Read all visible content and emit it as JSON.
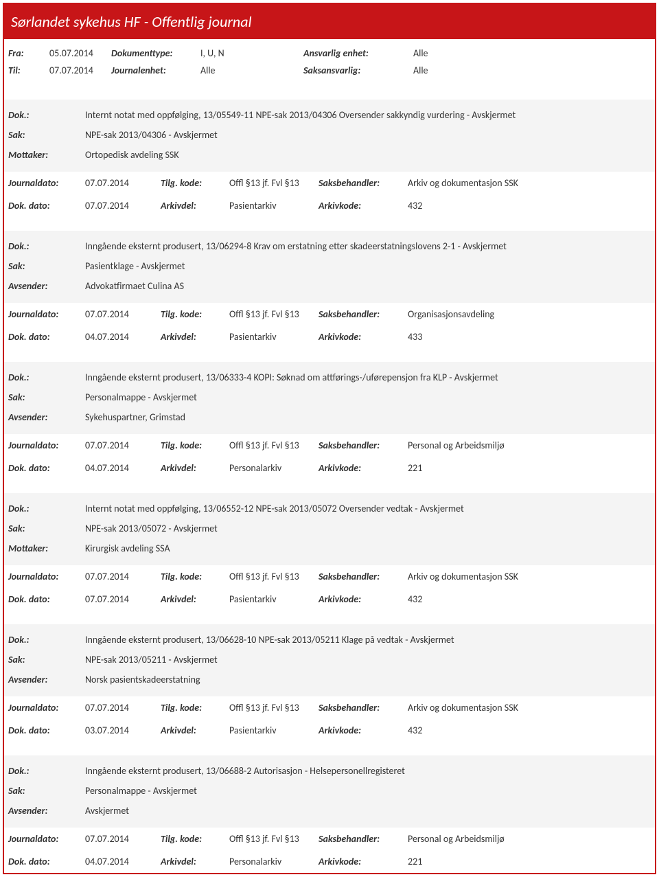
{
  "header": {
    "title": "Sørlandet sykehus HF - Offentlig journal"
  },
  "filter": {
    "fra_label": "Fra:",
    "fra_value": "05.07.2014",
    "til_label": "Til:",
    "til_value": "07.07.2014",
    "doktype_label": "Dokumenttype:",
    "doktype_value": "I, U, N",
    "journalenhet_label": "Journalenhet:",
    "journalenhet_value": "Alle",
    "ansvarlig_label": "Ansvarlig enhet:",
    "ansvarlig_value": "Alle",
    "saksansvarlig_label": "Saksansvarlig:",
    "saksansvarlig_value": "Alle"
  },
  "labels": {
    "dok": "Dok.:",
    "sak": "Sak:",
    "mottaker": "Mottaker:",
    "avsender": "Avsender:",
    "journaldato": "Journaldato:",
    "dokdato": "Dok. dato:",
    "tilgkode": "Tilg. kode:",
    "arkivdel": "Arkivdel:",
    "saksbehandler": "Saksbehandler:",
    "arkivkode": "Arkivkode:"
  },
  "entries": [
    {
      "dok": "Internt notat med oppfølging, 13/05549-11 NPE-sak 2013/04306 Oversender sakkyndig vurdering - Avskjermet",
      "sak": "NPE-sak 2013/04306 - Avskjermet",
      "party_label": "Mottaker:",
      "party_value": "Ortopedisk avdeling SSK",
      "journaldato": "07.07.2014",
      "tilgkode": "Offl §13 jf. Fvl §13",
      "saksbehandler": "Arkiv og dokumentasjon SSK",
      "dokdato": "07.07.2014",
      "arkivdel": "Pasientarkiv",
      "arkivkode": "432"
    },
    {
      "dok": "Inngående eksternt produsert, 13/06294-8 Krav om erstatning etter skadeerstatningslovens 2-1 - Avskjermet",
      "sak": "Pasientklage - Avskjermet",
      "party_label": "Avsender:",
      "party_value": "Advokatfirmaet Culina AS",
      "journaldato": "07.07.2014",
      "tilgkode": "Offl §13 jf. Fvl §13",
      "saksbehandler": "Organisasjonsavdeling",
      "dokdato": "04.07.2014",
      "arkivdel": "Pasientarkiv",
      "arkivkode": "433"
    },
    {
      "dok": "Inngående eksternt produsert, 13/06333-4 KOPI: Søknad om attførings-/uførepensjon fra KLP - Avskjermet",
      "sak": "Personalmappe - Avskjermet",
      "party_label": "Avsender:",
      "party_value": "Sykehuspartner, Grimstad",
      "journaldato": "07.07.2014",
      "tilgkode": "Offl §13 jf. Fvl §13",
      "saksbehandler": "Personal og Arbeidsmiljø",
      "dokdato": "04.07.2014",
      "arkivdel": "Personalarkiv",
      "arkivkode": "221"
    },
    {
      "dok": "Internt notat med oppfølging, 13/06552-12 NPE-sak 2013/05072 Oversender vedtak - Avskjermet",
      "sak": "NPE-sak 2013/05072 - Avskjermet",
      "party_label": "Mottaker:",
      "party_value": "Kirurgisk avdeling SSA",
      "journaldato": "07.07.2014",
      "tilgkode": "Offl §13 jf. Fvl §13",
      "saksbehandler": "Arkiv og dokumentasjon SSK",
      "dokdato": "07.07.2014",
      "arkivdel": "Pasientarkiv",
      "arkivkode": "432"
    },
    {
      "dok": "Inngående eksternt produsert, 13/06628-10 NPE-sak 2013/05211 Klage på vedtak - Avskjermet",
      "sak": "NPE-sak 2013/05211 - Avskjermet",
      "party_label": "Avsender:",
      "party_value": "Norsk pasientskadeerstatning",
      "journaldato": "07.07.2014",
      "tilgkode": "Offl §13 jf. Fvl §13",
      "saksbehandler": "Arkiv og dokumentasjon SSK",
      "dokdato": "03.07.2014",
      "arkivdel": "Pasientarkiv",
      "arkivkode": "432"
    },
    {
      "dok": "Inngående eksternt produsert, 13/06688-2 Autorisasjon - Helsepersonellregisteret",
      "sak": "Personalmappe - Avskjermet",
      "party_label": "Avsender:",
      "party_value": "Avskjermet",
      "journaldato": "07.07.2014",
      "tilgkode": "Offl §13 jf. Fvl §13",
      "saksbehandler": "Personal og Arbeidsmiljø",
      "dokdato": "04.07.2014",
      "arkivdel": "Personalarkiv",
      "arkivkode": "221"
    }
  ]
}
